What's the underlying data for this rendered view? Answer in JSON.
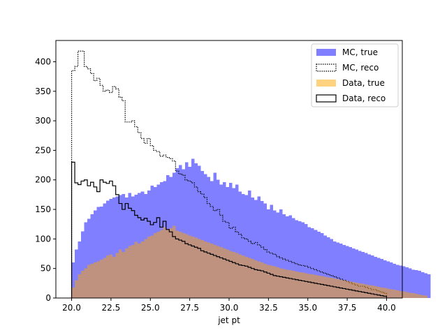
{
  "chart_data": {
    "type": "histogram",
    "xlabel": "jet pt",
    "ylabel": "",
    "xlim": [
      19.0,
      41.0
    ],
    "ylim": [
      0,
      436
    ],
    "bin_start": 20.0,
    "bin_width": 0.2,
    "x_ticks": [
      {
        "value": 20.0,
        "label": "20.0"
      },
      {
        "value": 22.5,
        "label": "22.5"
      },
      {
        "value": 25.0,
        "label": "25.0"
      },
      {
        "value": 27.5,
        "label": "27.5"
      },
      {
        "value": 30.0,
        "label": "30.0"
      },
      {
        "value": 32.5,
        "label": "32.5"
      },
      {
        "value": 35.0,
        "label": "35.0"
      },
      {
        "value": 37.5,
        "label": "37.5"
      },
      {
        "value": 40.0,
        "label": "40.0"
      }
    ],
    "y_ticks": [
      {
        "value": 0,
        "label": "0"
      },
      {
        "value": 50,
        "label": "50"
      },
      {
        "value": 100,
        "label": "100"
      },
      {
        "value": 150,
        "label": "150"
      },
      {
        "value": 200,
        "label": "200"
      },
      {
        "value": 250,
        "label": "250"
      },
      {
        "value": 300,
        "label": "300"
      },
      {
        "value": 350,
        "label": "350"
      },
      {
        "value": 400,
        "label": "400"
      }
    ],
    "legend_position": "upper right",
    "series": [
      {
        "name": "MC, true",
        "style": "filled",
        "color": "#7f7fff",
        "values": [
          60,
          82,
          96,
          113,
          128,
          134,
          142,
          148,
          154,
          155,
          160,
          165,
          168,
          170,
          172,
          174,
          176,
          170,
          178,
          172,
          175,
          178,
          180,
          176,
          182,
          190,
          188,
          192,
          196,
          198,
          208,
          205,
          212,
          220,
          225,
          218,
          230,
          222,
          236,
          228,
          224,
          215,
          210,
          205,
          198,
          212,
          200,
          192,
          196,
          188,
          195,
          186,
          192,
          180,
          176,
          174,
          182,
          170,
          166,
          172,
          164,
          160,
          150,
          158,
          148,
          145,
          150,
          142,
          138,
          140,
          135,
          132,
          130,
          128,
          125,
          120,
          118,
          115,
          112,
          110,
          106,
          103,
          100,
          96,
          94,
          92,
          90,
          88,
          86,
          84,
          82,
          80,
          78,
          76,
          74,
          72,
          70,
          68,
          66,
          64,
          62,
          60,
          58,
          56,
          55,
          54,
          52,
          50,
          48,
          47,
          46,
          44,
          42,
          40
        ]
      },
      {
        "name": "MC, reco",
        "style": "step-dotted",
        "color": "#000000",
        "values": [
          385,
          392,
          418,
          418,
          392,
          388,
          380,
          368,
          372,
          360,
          350,
          352,
          348,
          358,
          354,
          340,
          334,
          298,
          298,
          300,
          290,
          280,
          270,
          262,
          270,
          258,
          250,
          248,
          240,
          242,
          238,
          236,
          232,
          215,
          210,
          208,
          200,
          198,
          195,
          188,
          180,
          176,
          170,
          160,
          155,
          148,
          150,
          140,
          130,
          128,
          118,
          120,
          112,
          108,
          102,
          100,
          96,
          92,
          94,
          90,
          86,
          82,
          78,
          76,
          74,
          70,
          68,
          66,
          64,
          62,
          60,
          58,
          56,
          55,
          54,
          52,
          50,
          48,
          46,
          44,
          42,
          40,
          38,
          36,
          34,
          32,
          30,
          28,
          26,
          24,
          22,
          20,
          20,
          18,
          16,
          14,
          14,
          12,
          10,
          8
        ]
      },
      {
        "name": "Data, true",
        "style": "filled",
        "color": "#ffa500",
        "alpha": 0.5,
        "values": [
          18,
          30,
          40,
          46,
          50,
          56,
          58,
          60,
          62,
          65,
          68,
          72,
          74,
          70,
          76,
          82,
          78,
          84,
          88,
          90,
          95,
          92,
          96,
          100,
          104,
          106,
          110,
          112,
          115,
          120,
          116,
          118,
          122,
          114,
          112,
          110,
          108,
          106,
          104,
          102,
          100,
          98,
          96,
          94,
          92,
          90,
          88,
          86,
          84,
          82,
          80,
          78,
          76,
          74,
          72,
          70,
          68,
          66,
          64,
          62,
          60,
          58,
          56,
          55,
          54,
          52,
          50,
          49,
          48,
          47,
          46,
          45,
          44,
          43,
          42,
          41,
          40,
          39,
          38,
          37,
          36,
          35,
          34,
          33,
          32,
          31,
          30,
          29,
          28,
          27,
          26,
          25,
          24,
          23,
          22,
          21,
          20,
          19,
          18,
          17,
          16,
          15,
          14,
          13,
          12,
          11,
          10,
          9,
          8,
          7,
          6,
          5,
          4
        ]
      },
      {
        "name": "Data, reco",
        "style": "step",
        "color": "#000000",
        "values": [
          230,
          195,
          192,
          198,
          200,
          190,
          196,
          188,
          180,
          200,
          196,
          194,
          198,
          190,
          175,
          160,
          150,
          160,
          152,
          148,
          140,
          136,
          132,
          135,
          130,
          124,
          128,
          136,
          120,
          130,
          116,
          112,
          104,
          100,
          98,
          96,
          92,
          90,
          88,
          86,
          84,
          80,
          78,
          76,
          74,
          72,
          70,
          68,
          66,
          64,
          62,
          60,
          58,
          56,
          55,
          54,
          52,
          50,
          48,
          47,
          46,
          44,
          42,
          40,
          38,
          37,
          36,
          35,
          34,
          33,
          32,
          31,
          30,
          29,
          28,
          27,
          26,
          25,
          24,
          23,
          22,
          21,
          20,
          19,
          18,
          17,
          16,
          15,
          14,
          13,
          12,
          11,
          10,
          9,
          8,
          7,
          6,
          5,
          4,
          3
        ]
      }
    ]
  }
}
